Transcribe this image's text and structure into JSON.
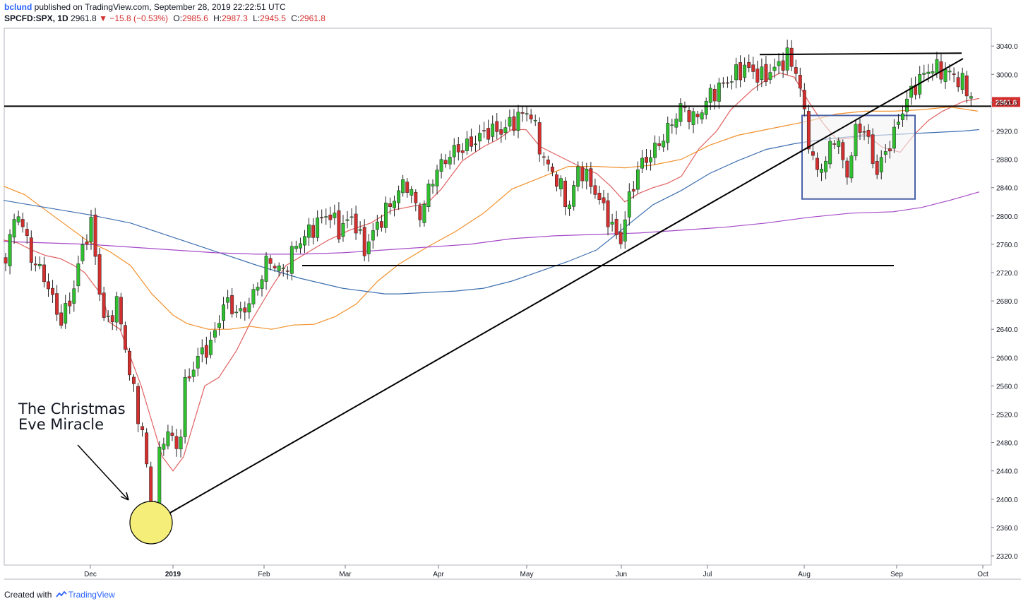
{
  "header": {
    "author": "bclund",
    "published": "published on TradingView.com, September 28, 2019 22:22:51 UTC",
    "symbol": "SPCFD:SPX, 1D",
    "last": "2961.8",
    "change": "−15.8 (−0.53%)",
    "o_label": "O:",
    "o": "2985.6",
    "h_label": "H:",
    "h": "2987.3",
    "l_label": "L:",
    "l": "2945.5",
    "c_label": "C:",
    "c": "2961.8"
  },
  "footer": {
    "created_with": "Created with",
    "brand": "TradingView"
  },
  "colors": {
    "up": "#2fbf2f",
    "down": "#d32f2f",
    "ma10": "#e06060",
    "ma50": "#f2902a",
    "ma100": "#3e6fb0",
    "ma200": "#a54ac8",
    "box": "#4a62a8",
    "highlight": "#f5ef7a"
  },
  "chart_data": {
    "type": "candlestick",
    "price_axis": {
      "min": 2300,
      "max": 3060,
      "ticks": [
        3040,
        3000,
        2960,
        2920,
        2880,
        2840,
        2800,
        2760,
        2720,
        2680,
        2640,
        2600,
        2560,
        2520,
        2480,
        2440,
        2400,
        2360,
        2320
      ]
    },
    "last_price_label": "2961.8",
    "time_axis": {
      "labels": [
        "Dec",
        "2019",
        "Feb",
        "Mar",
        "Apr",
        "May",
        "Jun",
        "Jul",
        "Aug",
        "Sep",
        "Oct"
      ]
    },
    "annotation": {
      "text_line1": "The Christmas",
      "text_line2": "Eve Miracle"
    },
    "levels": {
      "horizontal_resistance": 2955,
      "support": 2730,
      "top_line": 3030
    },
    "consolidation_box": {
      "price_top": 2942,
      "price_bottom": 2824,
      "start": "Aug",
      "end": "Sep"
    },
    "moving_averages": [
      {
        "key": "ma10",
        "points": [
          [
            0,
            2766
          ],
          [
            20,
            2762
          ],
          [
            40,
            2752
          ],
          [
            60,
            2744
          ],
          [
            80,
            2740
          ],
          [
            100,
            2730
          ],
          [
            115,
            2720
          ],
          [
            130,
            2700
          ],
          [
            140,
            2688
          ],
          [
            150,
            2650
          ],
          [
            165,
            2640
          ],
          [
            180,
            2600
          ],
          [
            195,
            2560
          ],
          [
            210,
            2510
          ],
          [
            225,
            2460
          ],
          [
            240,
            2440
          ],
          [
            255,
            2460
          ],
          [
            270,
            2510
          ],
          [
            285,
            2560
          ],
          [
            305,
            2572
          ],
          [
            330,
            2610
          ],
          [
            350,
            2650
          ],
          [
            380,
            2700
          ],
          [
            400,
            2730
          ],
          [
            430,
            2748
          ],
          [
            460,
            2766
          ],
          [
            490,
            2780
          ],
          [
            520,
            2790
          ],
          [
            550,
            2808
          ],
          [
            580,
            2814
          ],
          [
            600,
            2818
          ],
          [
            620,
            2838
          ],
          [
            650,
            2878
          ],
          [
            680,
            2898
          ],
          [
            700,
            2908
          ],
          [
            720,
            2922
          ],
          [
            740,
            2922
          ],
          [
            760,
            2898
          ],
          [
            780,
            2888
          ],
          [
            800,
            2878
          ],
          [
            820,
            2868
          ],
          [
            840,
            2860
          ],
          [
            860,
            2842
          ],
          [
            880,
            2820
          ],
          [
            900,
            2832
          ],
          [
            920,
            2840
          ],
          [
            940,
            2846
          ],
          [
            960,
            2856
          ],
          [
            985,
            2895
          ],
          [
            1010,
            2920
          ],
          [
            1030,
            2950
          ],
          [
            1060,
            2978
          ],
          [
            1080,
            2992
          ],
          [
            1100,
            3002
          ],
          [
            1120,
            2996
          ],
          [
            1140,
            2962
          ],
          [
            1160,
            2932
          ],
          [
            1180,
            2908
          ],
          [
            1200,
            2910
          ],
          [
            1220,
            2916
          ],
          [
            1245,
            2897
          ],
          [
            1270,
            2890
          ],
          [
            1290,
            2915
          ],
          [
            1310,
            2935
          ],
          [
            1330,
            2948
          ],
          [
            1360,
            2962
          ],
          [
            1382,
            2966
          ]
        ]
      },
      {
        "key": "ma50",
        "points": [
          [
            0,
            2842
          ],
          [
            30,
            2830
          ],
          [
            60,
            2808
          ],
          [
            90,
            2786
          ],
          [
            120,
            2764
          ],
          [
            150,
            2750
          ],
          [
            180,
            2730
          ],
          [
            210,
            2690
          ],
          [
            240,
            2660
          ],
          [
            260,
            2648
          ],
          [
            290,
            2640
          ],
          [
            320,
            2640
          ],
          [
            350,
            2644
          ],
          [
            380,
            2640
          ],
          [
            410,
            2646
          ],
          [
            440,
            2647
          ],
          [
            470,
            2658
          ],
          [
            500,
            2676
          ],
          [
            530,
            2708
          ],
          [
            560,
            2732
          ],
          [
            600,
            2756
          ],
          [
            640,
            2778
          ],
          [
            680,
            2804
          ],
          [
            720,
            2838
          ],
          [
            760,
            2854
          ],
          [
            800,
            2870
          ],
          [
            840,
            2870
          ],
          [
            880,
            2868
          ],
          [
            920,
            2872
          ],
          [
            960,
            2880
          ],
          [
            1000,
            2900
          ],
          [
            1040,
            2914
          ],
          [
            1080,
            2922
          ],
          [
            1100,
            2926
          ],
          [
            1140,
            2934
          ],
          [
            1180,
            2944
          ],
          [
            1220,
            2948
          ],
          [
            1260,
            2948
          ],
          [
            1300,
            2950
          ],
          [
            1340,
            2954
          ],
          [
            1380,
            2948
          ]
        ]
      },
      {
        "key": "ma100",
        "points": [
          [
            0,
            2822
          ],
          [
            60,
            2812
          ],
          [
            120,
            2802
          ],
          [
            180,
            2790
          ],
          [
            240,
            2770
          ],
          [
            300,
            2750
          ],
          [
            360,
            2730
          ],
          [
            420,
            2712
          ],
          [
            480,
            2698
          ],
          [
            540,
            2690
          ],
          [
            560,
            2690
          ],
          [
            600,
            2692
          ],
          [
            640,
            2694
          ],
          [
            680,
            2698
          ],
          [
            720,
            2708
          ],
          [
            760,
            2722
          ],
          [
            800,
            2736
          ],
          [
            840,
            2752
          ],
          [
            880,
            2784
          ],
          [
            920,
            2816
          ],
          [
            960,
            2836
          ],
          [
            1000,
            2860
          ],
          [
            1040,
            2878
          ],
          [
            1080,
            2894
          ],
          [
            1120,
            2902
          ],
          [
            1160,
            2908
          ],
          [
            1200,
            2912
          ],
          [
            1240,
            2914
          ],
          [
            1280,
            2916
          ],
          [
            1320,
            2918
          ],
          [
            1360,
            2920
          ],
          [
            1382,
            2922
          ]
        ]
      },
      {
        "key": "ma200",
        "points": [
          [
            0,
            2764
          ],
          [
            60,
            2762
          ],
          [
            120,
            2760
          ],
          [
            180,
            2756
          ],
          [
            240,
            2752
          ],
          [
            300,
            2748
          ],
          [
            360,
            2746
          ],
          [
            420,
            2746
          ],
          [
            480,
            2748
          ],
          [
            540,
            2752
          ],
          [
            600,
            2756
          ],
          [
            660,
            2760
          ],
          [
            720,
            2768
          ],
          [
            780,
            2772
          ],
          [
            840,
            2774
          ],
          [
            900,
            2776
          ],
          [
            960,
            2780
          ],
          [
            1020,
            2784
          ],
          [
            1080,
            2790
          ],
          [
            1140,
            2798
          ],
          [
            1200,
            2804
          ],
          [
            1260,
            2806
          ],
          [
            1300,
            2812
          ],
          [
            1340,
            2822
          ],
          [
            1382,
            2834
          ]
        ]
      }
    ]
  }
}
